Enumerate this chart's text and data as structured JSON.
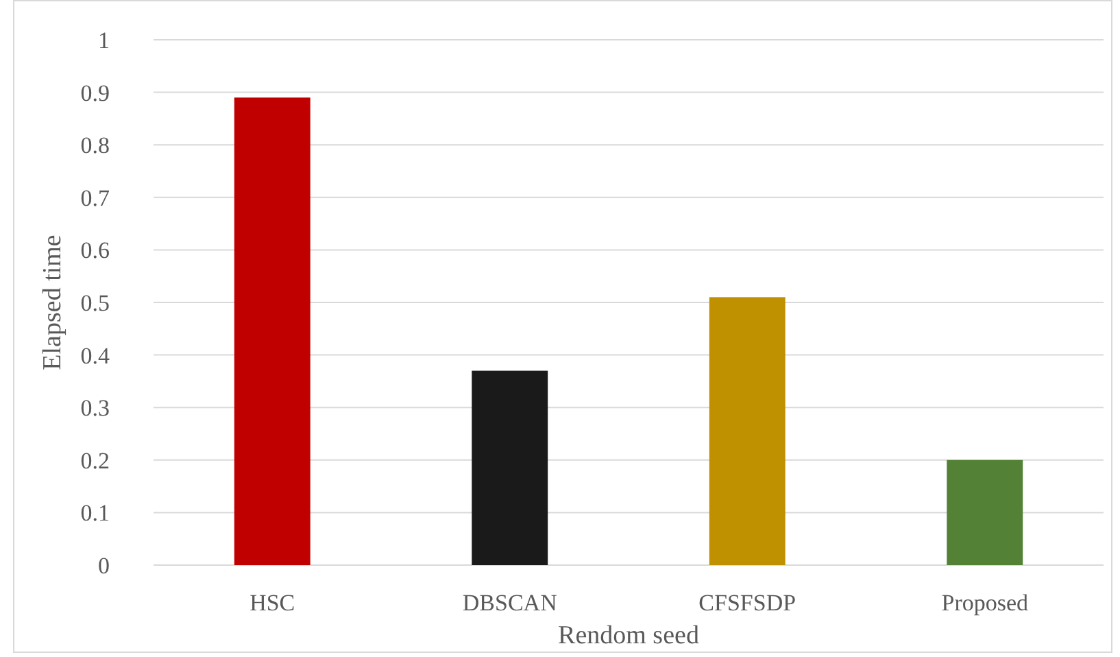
{
  "chart_data": {
    "type": "bar",
    "xlabel": "Rendom seed",
    "ylabel": "Elapsed time",
    "categories": [
      "HSC",
      "DBSCAN",
      "CFSFSDP",
      "Proposed"
    ],
    "values": [
      0.89,
      0.37,
      0.51,
      0.2
    ],
    "colors": [
      "#c00000",
      "#1a1a1a",
      "#bf9000",
      "#538135"
    ],
    "ylim": [
      0,
      1
    ],
    "yticks": [
      0,
      0.1,
      0.2,
      0.3,
      0.4,
      0.5,
      0.6,
      0.7,
      0.8,
      0.9,
      1
    ],
    "grid": "y"
  }
}
